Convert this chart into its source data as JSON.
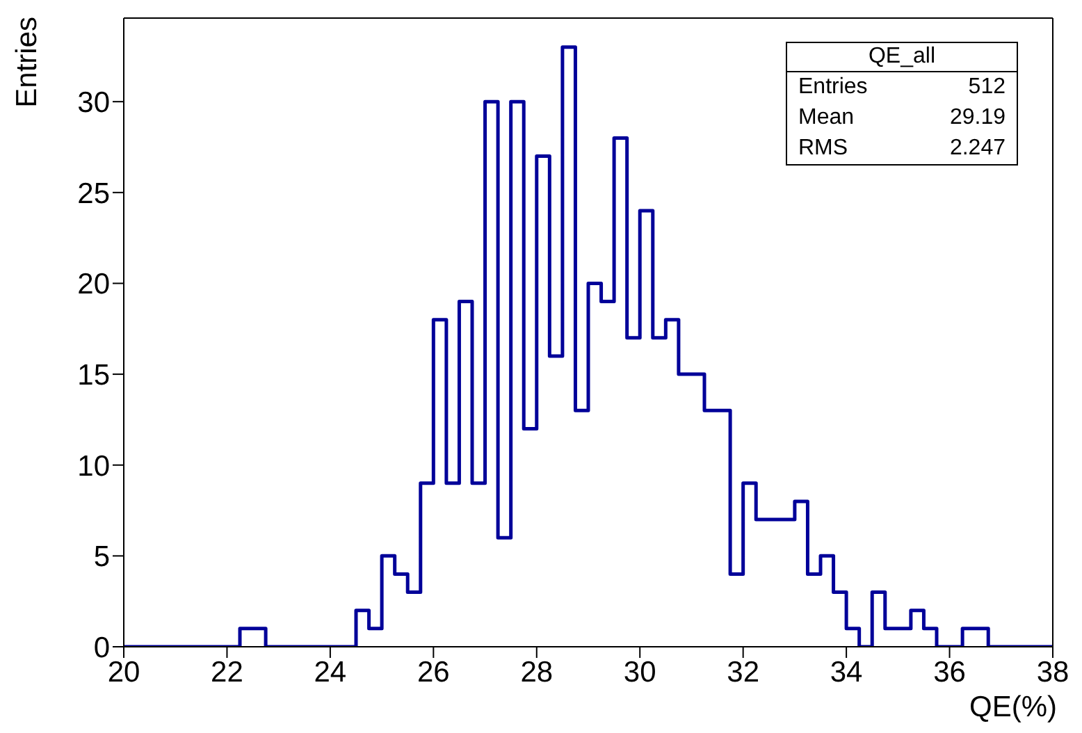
{
  "chart_data": {
    "type": "histogram",
    "xlabel": "QE(%)",
    "ylabel": "Entries",
    "bins": [
      20,
      20.25,
      20.5,
      20.75,
      21,
      21.25,
      21.5,
      21.75,
      22,
      22.25,
      22.5,
      22.75,
      23,
      23.25,
      23.5,
      23.75,
      24,
      24.25,
      24.5,
      24.75,
      25,
      25.25,
      25.5,
      25.75,
      26,
      26.25,
      26.5,
      26.75,
      27,
      27.25,
      27.5,
      27.75,
      28,
      28.25,
      28.5,
      28.75,
      29,
      29.25,
      29.5,
      29.75,
      30,
      30.25,
      30.5,
      30.75,
      31,
      31.25,
      31.5,
      31.75,
      32,
      32.25,
      32.5,
      32.75,
      33,
      33.25,
      33.5,
      33.75,
      34,
      34.25,
      34.5,
      34.75,
      35,
      35.25,
      35.5,
      35.75,
      36,
      36.25,
      36.5,
      36.75,
      37,
      37.25,
      37.5,
      37.75,
      38
    ],
    "values": [
      0,
      0,
      0,
      0,
      0,
      0,
      0,
      0,
      0,
      1,
      1,
      0,
      0,
      0,
      0,
      0,
      0,
      0,
      2,
      1,
      5,
      4,
      3,
      9,
      18,
      9,
      19,
      9,
      30,
      6,
      30,
      12,
      27,
      16,
      33,
      13,
      20,
      19,
      28,
      17,
      24,
      17,
      18,
      15,
      15,
      13,
      13,
      4,
      9,
      7,
      7,
      7,
      8,
      4,
      5,
      3,
      1,
      0,
      3,
      1,
      1,
      2,
      1,
      0,
      0,
      1,
      1,
      0,
      0,
      0,
      0,
      0
    ],
    "color": "#000099",
    "xlim": [
      20,
      38
    ],
    "xticks": [
      20,
      22,
      24,
      26,
      28,
      30,
      32,
      34,
      36,
      38
    ],
    "ylim": [
      0,
      34.6
    ],
    "yticks": [
      0,
      5,
      10,
      15,
      20,
      25,
      30
    ],
    "annotations": [
      "QE_all",
      "Entries",
      "512",
      "Mean",
      "29.19",
      "RMS",
      "2.247"
    ]
  }
}
